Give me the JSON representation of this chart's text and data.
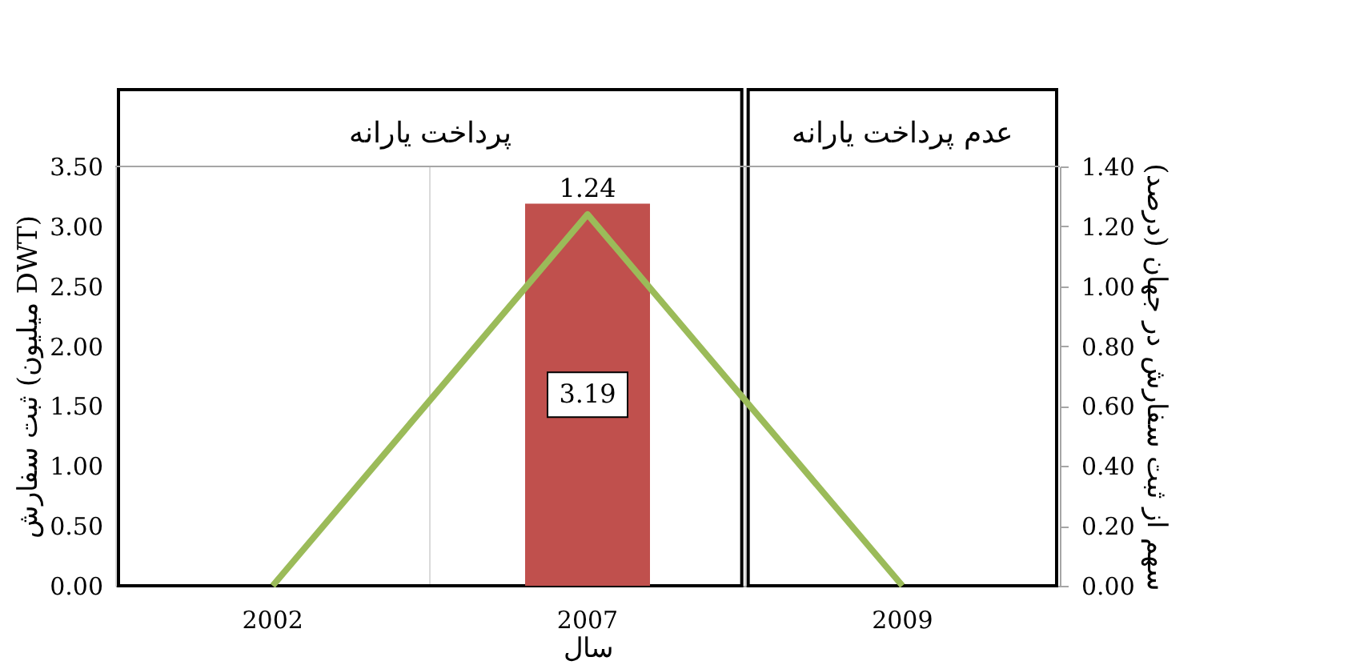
{
  "chart_data": {
    "type": "bar",
    "categories": [
      "2002",
      "2007",
      "2009"
    ],
    "xlabel": "سال",
    "ylabel": "ثبت سفارش (میلیون DWT)",
    "y2label": "سهم از ثبت سفارش در جهان (درصد)",
    "series": [
      {
        "color": "#c0504d",
        "values": [
          0,
          3.19,
          0
        ],
        "value_labels": [
          null,
          "3.19",
          null
        ]
      },
      {
        "type": "line",
        "axis": "y2",
        "color": "#9bbb59",
        "values": [
          0,
          1.24,
          0
        ],
        "value_labels": [
          null,
          "1.24",
          null
        ]
      }
    ],
    "ylim": [
      0,
      3.5
    ],
    "yticks": [
      {
        "value": 0,
        "label": "0.00"
      },
      {
        "value": 0.5,
        "label": "0.50"
      },
      {
        "value": 1,
        "label": "1.00"
      },
      {
        "value": 1.5,
        "label": "1.50"
      },
      {
        "value": 2,
        "label": "2.00"
      },
      {
        "value": 2.5,
        "label": "2.50"
      },
      {
        "value": 3,
        "label": "3.00"
      },
      {
        "value": 3.5,
        "label": "3.50"
      }
    ],
    "y2lim": [
      0,
      1.4
    ],
    "y2ticks": [
      {
        "value": 0,
        "label": "0.00"
      },
      {
        "value": 0.2,
        "label": "0.20"
      },
      {
        "value": 0.4,
        "label": "0.40"
      },
      {
        "value": 0.6,
        "label": "0.60"
      },
      {
        "value": 0.8,
        "label": "0.80"
      },
      {
        "value": 1,
        "label": "1.00"
      },
      {
        "value": 1.2,
        "label": "1.20"
      },
      {
        "value": 1.4,
        "label": "1.40"
      }
    ],
    "bands": [
      {
        "axis": "x",
        "from": "2002",
        "to": "2007",
        "label": "پرداخت یارانه"
      },
      {
        "axis": "x",
        "from": "2009",
        "to": "2009",
        "label": "عدم پرداخت یارانه"
      }
    ],
    "grid": "x",
    "marker": "none",
    "line_style": "solid"
  }
}
